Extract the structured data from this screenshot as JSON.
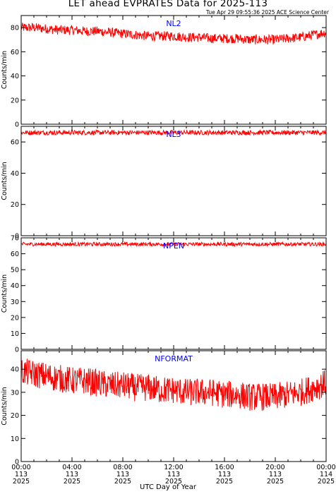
{
  "title": "LET ahead EVPRATES Data for 2025-113",
  "timestamp": "Tue Apr 29 09:55:36 2025 ACE Science Center",
  "xlabel": "UTC Day of Year",
  "colors": {
    "series": "#ff0000",
    "panel_label": "#0000ff",
    "axis": "#000000"
  },
  "x_axis": {
    "range_hours": [
      0,
      24
    ],
    "ticks": [
      {
        "hour": 0,
        "time": "00:00",
        "doy": "113",
        "year": "2025"
      },
      {
        "hour": 4,
        "time": "04:00",
        "doy": "113",
        "year": "2025"
      },
      {
        "hour": 8,
        "time": "08:00",
        "doy": "113",
        "year": "2025"
      },
      {
        "hour": 12,
        "time": "12:00",
        "doy": "113",
        "year": "2025"
      },
      {
        "hour": 16,
        "time": "16:00",
        "doy": "113",
        "year": "2025"
      },
      {
        "hour": 20,
        "time": "20:00",
        "doy": "113",
        "year": "2025"
      },
      {
        "hour": 24,
        "time": "00:00",
        "doy": "114",
        "year": "2025"
      }
    ]
  },
  "chart_data": [
    {
      "type": "line",
      "name": "NL2",
      "ylabel": "Counts/min",
      "ylim": [
        0,
        90
      ],
      "yticks": [
        0,
        20,
        40,
        60,
        80
      ],
      "x": [
        0,
        1,
        2,
        3,
        4,
        5,
        6,
        7,
        8,
        9,
        10,
        11,
        12,
        13,
        14,
        15,
        16,
        17,
        18,
        19,
        20,
        21,
        22,
        23,
        24
      ],
      "values": [
        80,
        80,
        79,
        78,
        78,
        77,
        77,
        76,
        75,
        74,
        73,
        73,
        73,
        72,
        72,
        71,
        71,
        71,
        70,
        70,
        70,
        71,
        72,
        74,
        76
      ],
      "noise": 4
    },
    {
      "type": "line",
      "name": "NL3",
      "ylabel": "Counts/min",
      "ylim": [
        0,
        70
      ],
      "yticks": [
        0,
        20,
        40,
        60
      ],
      "x": [
        0,
        4,
        8,
        12,
        16,
        20,
        24
      ],
      "values": [
        66,
        66,
        66,
        66,
        66,
        66,
        66
      ],
      "noise": 1.5
    },
    {
      "type": "line",
      "name": "NPEN",
      "ylabel": "Counts/min",
      "ylim": [
        0,
        70
      ],
      "yticks": [
        0,
        10,
        20,
        30,
        40,
        50,
        60,
        70
      ],
      "x": [
        0,
        4,
        8,
        12,
        16,
        20,
        24
      ],
      "values": [
        66,
        66,
        66,
        66,
        66,
        66,
        66
      ],
      "noise": 1.2
    },
    {
      "type": "line",
      "name": "NFORMAT",
      "ylabel": "Counts/min",
      "ylim": [
        0,
        48
      ],
      "yticks": [
        0,
        10,
        20,
        30,
        40
      ],
      "x": [
        0,
        1,
        2,
        3,
        4,
        5,
        6,
        7,
        8,
        9,
        10,
        11,
        12,
        13,
        14,
        15,
        16,
        17,
        18,
        19,
        20,
        21,
        22,
        23,
        24
      ],
      "values": [
        39,
        38,
        37,
        36,
        35,
        35,
        34,
        33,
        33,
        32,
        32,
        31,
        31,
        30,
        30,
        30,
        29,
        29,
        28,
        28,
        28,
        29,
        30,
        32,
        34
      ],
      "noise": 6
    }
  ]
}
